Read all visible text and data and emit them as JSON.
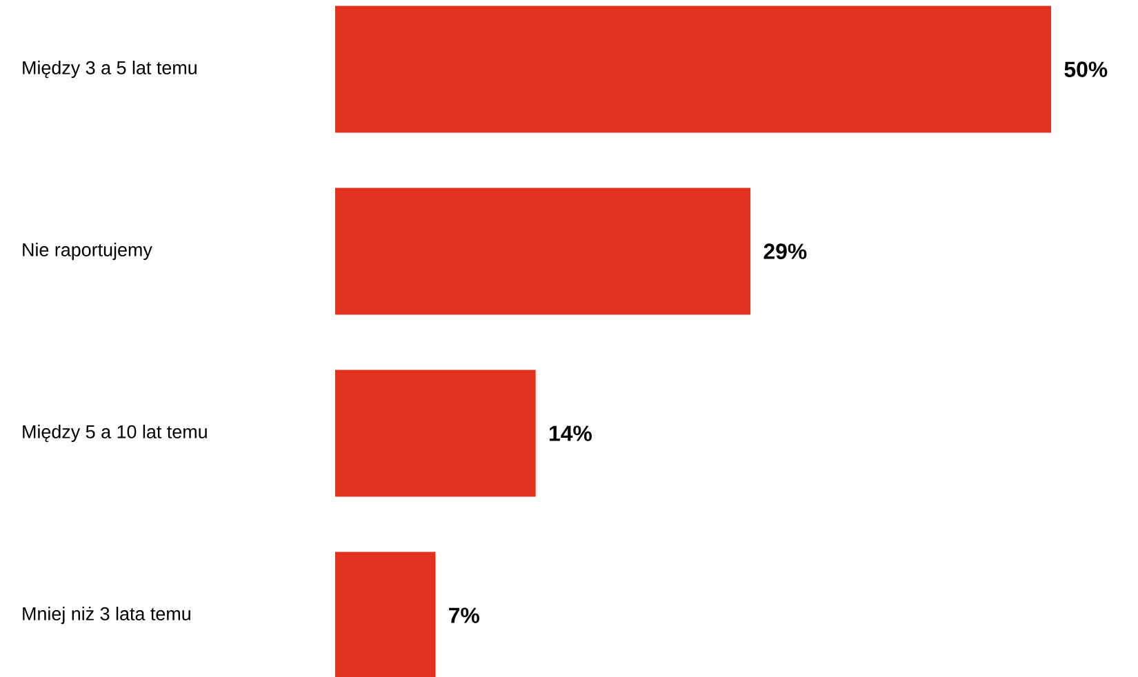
{
  "chart_data": {
    "type": "bar",
    "orientation": "horizontal",
    "categories": [
      "Między 3 a 5 lat temu",
      "Nie raportujemy",
      "Między 5 a 10 lat temu",
      "Mniej niż 3 lata temu"
    ],
    "values": [
      50,
      29,
      14,
      7
    ],
    "value_labels": [
      "50%",
      "29%",
      "14%",
      "7%"
    ],
    "color": "#e0321f"
  }
}
